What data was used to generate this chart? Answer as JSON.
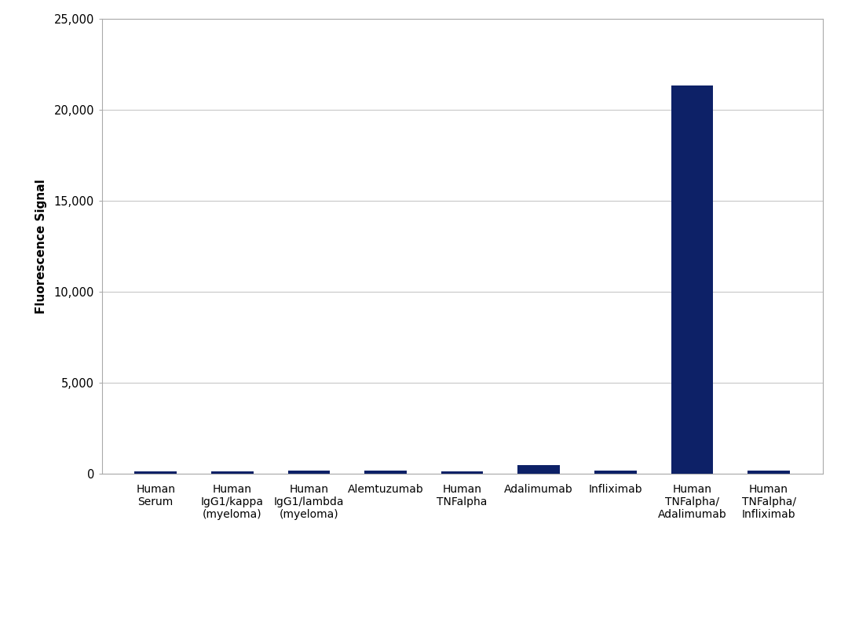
{
  "categories": [
    "Human\nSerum",
    "Human\nIgG1/kappa\n(myeloma)",
    "Human\nIgG1/lambda\n(myeloma)",
    "Alemtuzumab",
    "Human\nTNFalpha",
    "Adalimumab",
    "Infliximab",
    "Human\nTNFalpha/\nAdalimumab",
    "Human\nTNFalpha/\nInfliximab"
  ],
  "values": [
    120,
    110,
    160,
    155,
    140,
    450,
    185,
    21350,
    145
  ],
  "bar_color": "#0D2167",
  "ylabel": "Fluorescence Signal",
  "ylim": [
    0,
    25000
  ],
  "yticks": [
    0,
    5000,
    10000,
    15000,
    20000,
    25000
  ],
  "ytick_labels": [
    "0",
    "5,000",
    "10,000",
    "15,000",
    "20,000",
    "25,000"
  ],
  "background_color": "#ffffff",
  "plot_bg_color": "#ffffff",
  "grid_color": "#c8c8c8",
  "bar_width": 0.55,
  "ylabel_fontsize": 11,
  "tick_fontsize": 10.5,
  "xtick_fontsize": 10,
  "spine_color": "#aaaaaa"
}
